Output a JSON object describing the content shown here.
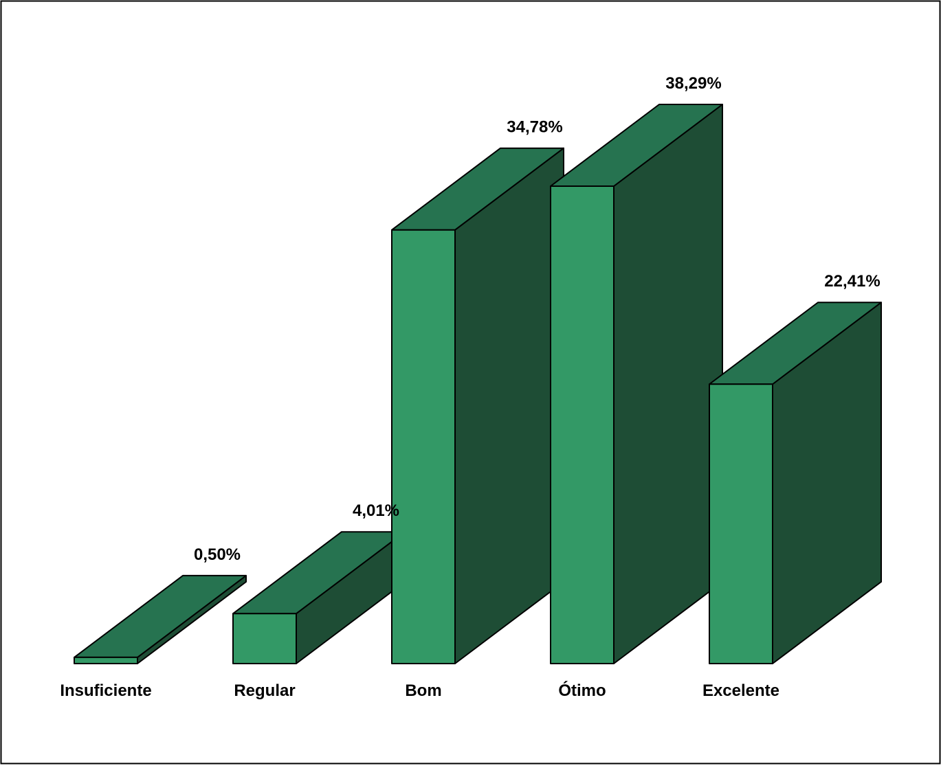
{
  "chart_data": {
    "type": "bar",
    "style": "3d",
    "categories": [
      "Insuficiente",
      "Regular",
      "Bom",
      "Ótimo",
      "Excelente"
    ],
    "values": [
      0.5,
      4.01,
      34.78,
      38.29,
      22.41
    ],
    "value_labels": [
      "0,50%",
      "4,01%",
      "34,78%",
      "38,29%",
      "22,41%"
    ],
    "title": "",
    "xlabel": "",
    "ylabel": "",
    "ylim": [
      0,
      38.29
    ],
    "grid": false,
    "legend": "none",
    "colors": {
      "front": "#339966",
      "top": "#267350",
      "side": "#1e4d35",
      "outline": "#000000",
      "frame": "#000000"
    }
  }
}
